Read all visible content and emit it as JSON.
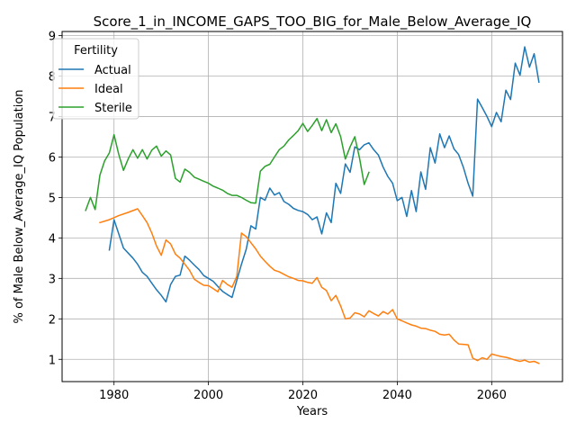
{
  "chart_data": {
    "type": "line",
    "title": "Score_1_in_INCOME_GAPS_TOO_BIG_for_Male_Below_Average_IQ",
    "xlabel": "Years",
    "ylabel": "% of Male Below_Average_IQ Population",
    "xlim": [
      1969,
      2075
    ],
    "ylim": [
      0.45,
      9.1
    ],
    "xticks": [
      1980,
      2000,
      2020,
      2040,
      2060
    ],
    "yticks": [
      1,
      2,
      3,
      4,
      5,
      6,
      7,
      8,
      9
    ],
    "grid": true,
    "legend": {
      "title": "Fertility",
      "placement": "top-left"
    },
    "series": [
      {
        "name": "Actual",
        "color": "#1f77b4",
        "x": [
          1979,
          1980,
          1982,
          1984,
          1985,
          1986,
          1987,
          1988,
          1989,
          1990,
          1991,
          1992,
          1993,
          1994,
          1995,
          1996,
          1997,
          1998,
          1999,
          2000,
          2001,
          2002,
          2003,
          2004,
          2005,
          2006,
          2007,
          2008,
          2009,
          2010,
          2011,
          2012,
          2013,
          2014,
          2015,
          2016,
          2017,
          2018,
          2019,
          2020,
          2021,
          2022,
          2023,
          2024,
          2025,
          2026,
          2027,
          2028,
          2029,
          2030,
          2031,
          2032,
          2033,
          2034,
          2035,
          2036,
          2037,
          2038,
          2039,
          2040,
          2041,
          2042,
          2043,
          2044,
          2045,
          2046,
          2047,
          2048,
          2049,
          2050,
          2051,
          2052,
          2053,
          2054,
          2055,
          2056,
          2057,
          2058,
          2059,
          2060,
          2061,
          2062,
          2063,
          2064,
          2065,
          2066,
          2067,
          2068,
          2069,
          2070
        ],
        "y": [
          3.7,
          4.45,
          3.75,
          3.5,
          3.35,
          3.15,
          3.05,
          2.88,
          2.72,
          2.58,
          2.42,
          2.85,
          3.05,
          3.08,
          3.55,
          3.45,
          3.33,
          3.22,
          3.07,
          3.0,
          2.93,
          2.8,
          2.68,
          2.6,
          2.53,
          2.95,
          3.35,
          3.72,
          4.3,
          4.22,
          5.0,
          4.93,
          5.23,
          5.06,
          5.12,
          4.9,
          4.83,
          4.73,
          4.68,
          4.65,
          4.58,
          4.45,
          4.52,
          4.1,
          4.62,
          4.38,
          5.35,
          5.1,
          5.83,
          5.62,
          6.25,
          6.18,
          6.3,
          6.35,
          6.18,
          6.05,
          5.75,
          5.52,
          5.35,
          4.92,
          5.0,
          4.53,
          5.17,
          4.65,
          5.63,
          5.2,
          6.23,
          5.85,
          6.57,
          6.23,
          6.52,
          6.2,
          6.06,
          5.75,
          5.35,
          5.03,
          7.43,
          7.22,
          7.0,
          6.75,
          7.1,
          6.87,
          7.65,
          7.42,
          8.32,
          8.02,
          8.72,
          8.22,
          8.55,
          7.85
        ]
      },
      {
        "name": "Ideal",
        "color": "#ff7f0e",
        "x": [
          1977,
          1979,
          1981,
          1983,
          1985,
          1986,
          1987,
          1988,
          1989,
          1990,
          1991,
          1992,
          1993,
          1994,
          1995,
          1996,
          1997,
          1998,
          1999,
          2000,
          2001,
          2002,
          2003,
          2004,
          2005,
          2006,
          2007,
          2008,
          2009,
          2010,
          2011,
          2012,
          2013,
          2014,
          2015,
          2016,
          2017,
          2018,
          2019,
          2020,
          2021,
          2022,
          2023,
          2024,
          2025,
          2026,
          2027,
          2028,
          2029,
          2030,
          2031,
          2032,
          2033,
          2034,
          2035,
          2036,
          2037,
          2038,
          2039,
          2040,
          2041,
          2042,
          2043,
          2044,
          2045,
          2046,
          2047,
          2048,
          2049,
          2050,
          2051,
          2052,
          2053,
          2054,
          2055,
          2056,
          2057,
          2058,
          2059,
          2060,
          2061,
          2062,
          2063,
          2064,
          2065,
          2066,
          2067,
          2068,
          2069,
          2070
        ],
        "y": [
          4.38,
          4.45,
          4.55,
          4.63,
          4.72,
          4.55,
          4.38,
          4.12,
          3.8,
          3.57,
          3.95,
          3.85,
          3.6,
          3.5,
          3.35,
          3.2,
          2.98,
          2.9,
          2.83,
          2.82,
          2.75,
          2.67,
          2.95,
          2.85,
          2.78,
          3.05,
          4.12,
          4.03,
          3.88,
          3.73,
          3.55,
          3.42,
          3.3,
          3.2,
          3.16,
          3.1,
          3.04,
          3.0,
          2.95,
          2.94,
          2.9,
          2.88,
          3.02,
          2.78,
          2.7,
          2.45,
          2.58,
          2.32,
          2.0,
          2.02,
          2.15,
          2.12,
          2.05,
          2.2,
          2.13,
          2.07,
          2.18,
          2.12,
          2.23,
          2.0,
          1.95,
          1.9,
          1.85,
          1.82,
          1.77,
          1.76,
          1.72,
          1.69,
          1.62,
          1.6,
          1.62,
          1.48,
          1.38,
          1.37,
          1.36,
          1.03,
          0.97,
          1.04,
          1.0,
          1.13,
          1.1,
          1.07,
          1.05,
          1.02,
          0.98,
          0.95,
          0.98,
          0.93,
          0.95,
          0.9
        ]
      },
      {
        "name": "Sterile",
        "color": "#2ca02c",
        "x": [
          1974,
          1975,
          1976,
          1977,
          1978,
          1979,
          1980,
          1981,
          1982,
          1983,
          1984,
          1985,
          1986,
          1987,
          1988,
          1989,
          1990,
          1991,
          1992,
          1993,
          1994,
          1995,
          1996,
          1997,
          1998,
          1999,
          2000,
          2001,
          2002,
          2003,
          2004,
          2005,
          2006,
          2007,
          2008,
          2009,
          2010,
          2011,
          2012,
          2013,
          2014,
          2015,
          2016,
          2017,
          2018,
          2019,
          2020,
          2021,
          2022,
          2023,
          2024,
          2025,
          2026,
          2027,
          2028,
          2029,
          2030,
          2031,
          2032,
          2033,
          2034
        ],
        "y": [
          4.68,
          5.0,
          4.7,
          5.55,
          5.9,
          6.1,
          6.55,
          6.07,
          5.67,
          5.95,
          6.18,
          5.97,
          6.18,
          5.95,
          6.17,
          6.27,
          6.02,
          6.15,
          6.05,
          5.47,
          5.38,
          5.7,
          5.62,
          5.5,
          5.45,
          5.4,
          5.35,
          5.28,
          5.23,
          5.18,
          5.1,
          5.05,
          5.05,
          5.0,
          4.93,
          4.87,
          4.86,
          5.65,
          5.77,
          5.82,
          6.0,
          6.18,
          6.27,
          6.42,
          6.53,
          6.65,
          6.83,
          6.63,
          6.78,
          6.95,
          6.65,
          6.92,
          6.6,
          6.82,
          6.5,
          5.95,
          6.25,
          6.5,
          5.97,
          5.32,
          5.62
        ]
      }
    ]
  }
}
